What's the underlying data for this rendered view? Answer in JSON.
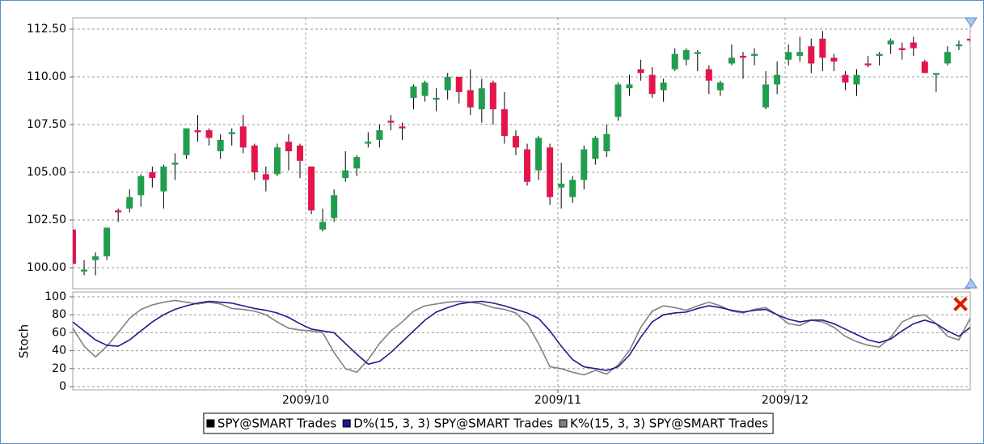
{
  "chart_data": [
    {
      "type": "candlestick",
      "series": [
        {
          "name": "SPY@SMART Trades",
          "color": "#000000",
          "up_color": "#1f9e4d",
          "down_color": "#e4154b",
          "open": [
            102,
            99.8,
            100.4,
            100.6,
            103,
            103.1,
            103.8,
            105,
            104,
            105.4,
            105.9,
            107.2,
            107.2,
            106.1,
            107,
            107.4,
            106.4,
            104.9,
            104.9,
            106.6,
            106.4,
            105.3,
            102,
            102.6,
            104.7,
            105.2,
            106.5,
            106.7,
            107.7,
            107.4,
            108.9,
            109,
            108.8,
            109.3,
            110,
            109.3,
            108.3,
            109.7,
            108.3,
            106.9,
            106.2,
            105.1,
            106.3,
            104.2,
            103.7,
            104.6,
            105.7,
            106.1,
            107.9,
            109.4,
            110.4,
            110.1,
            109.3,
            110.4,
            110.9,
            111.2,
            110.4,
            109.3,
            110.7,
            111.1,
            111.1,
            108.4,
            109.6,
            110.9,
            111.1,
            111.6,
            112,
            111,
            110.1,
            109.6,
            110.7,
            111.1,
            111.7,
            111.5,
            111.8,
            110.8,
            110.1,
            110.7,
            111.6,
            112
          ],
          "high": [
            102,
            100.4,
            100.8,
            102.1,
            103.1,
            104.1,
            104.9,
            105.3,
            105.4,
            106,
            107.3,
            108,
            107.3,
            107,
            107.3,
            108,
            106.5,
            105.3,
            106.5,
            107,
            106.5,
            105.3,
            103.1,
            104.1,
            106.1,
            105.9,
            107.1,
            107.5,
            108,
            107.6,
            109.6,
            109.8,
            109.4,
            110.2,
            110,
            110.4,
            109.9,
            109.8,
            109.2,
            107.2,
            106.5,
            106.9,
            106.5,
            105.5,
            104.8,
            106.4,
            106.9,
            107.5,
            109.7,
            110.1,
            110.9,
            110.5,
            109.9,
            111.5,
            111.5,
            111.4,
            110.6,
            109.8,
            111.7,
            111.3,
            111.5,
            110.3,
            110.8,
            111.7,
            112.1,
            112,
            112.4,
            111.2,
            110.3,
            110.4,
            111.1,
            111.3,
            112,
            111.8,
            112.1,
            110.9,
            110.2,
            111.6,
            111.9,
            112
          ],
          "low": [
            100.2,
            99.6,
            99.6,
            100.4,
            102.4,
            102.9,
            103.2,
            104.2,
            103.1,
            104.6,
            105.7,
            106.6,
            106.4,
            105.7,
            106.4,
            106,
            104.6,
            104,
            104.8,
            105.1,
            104.7,
            102.8,
            101.9,
            102.4,
            104.5,
            104.8,
            106.3,
            106.3,
            107.2,
            106.7,
            108.3,
            108.7,
            108.2,
            108.8,
            108.6,
            108,
            107.6,
            107.5,
            106.5,
            105.9,
            104.3,
            104.6,
            103.3,
            103.1,
            103.4,
            104.1,
            105.4,
            105.8,
            107.7,
            109,
            109.8,
            108.9,
            108.7,
            110.3,
            110.6,
            110.3,
            109.1,
            109,
            110.6,
            109.9,
            110.6,
            108.3,
            109.1,
            110.6,
            110.8,
            110.2,
            110.3,
            110.3,
            109.3,
            109,
            110.5,
            110.6,
            111.2,
            110.9,
            111.1,
            110.2,
            109.2,
            110.6,
            111.4,
            111.8
          ],
          "close": [
            100.2,
            99.9,
            100.6,
            102.1,
            102.9,
            103.7,
            104.8,
            104.7,
            105.3,
            105.5,
            107.3,
            107.1,
            106.8,
            106.7,
            107.1,
            106.3,
            105,
            104.6,
            106.3,
            106.1,
            105.6,
            103,
            102.4,
            103.8,
            105.1,
            105.8,
            106.6,
            107.2,
            107.6,
            107.3,
            109.5,
            109.7,
            108.9,
            110,
            109.2,
            108.4,
            109.4,
            108.3,
            106.9,
            106.3,
            104.5,
            106.8,
            103.7,
            104.4,
            104.6,
            106.2,
            106.8,
            107,
            109.6,
            109.6,
            110.2,
            109.1,
            109.7,
            111.2,
            111.4,
            111.3,
            109.8,
            109.7,
            111,
            111,
            111.2,
            109.6,
            110.1,
            111.3,
            111.3,
            110.7,
            111,
            110.8,
            109.7,
            110.1,
            110.6,
            111.2,
            111.9,
            111.4,
            111.5,
            110.2,
            110.2,
            111.3,
            111.7,
            111.9
          ]
        }
      ],
      "xlim": [
        0,
        79
      ],
      "ylim": [
        99,
        113
      ],
      "yticks": [
        {
          "value": 100,
          "label": "100.00"
        },
        {
          "value": 102.5,
          "label": "102.50"
        },
        {
          "value": 105,
          "label": "105.00"
        },
        {
          "value": 107.5,
          "label": "107.50"
        },
        {
          "value": 110,
          "label": "110.00"
        },
        {
          "value": 112.5,
          "label": "112.50"
        }
      ],
      "grid": true
    },
    {
      "type": "line",
      "ylabel": "Stoch",
      "series": [
        {
          "name": "D%(15, 3, 3) SPY@SMART Trades",
          "color": "#1c1c8c",
          "values": [
            72,
            62,
            52,
            46,
            45,
            52,
            62,
            72,
            80,
            86,
            90,
            93,
            95,
            94,
            93,
            90,
            87,
            85,
            82,
            77,
            70,
            64,
            62,
            60,
            48,
            36,
            25,
            28,
            38,
            50,
            62,
            74,
            83,
            88,
            92,
            94,
            95,
            93,
            90,
            86,
            82,
            76,
            62,
            45,
            30,
            22,
            20,
            18,
            22,
            35,
            55,
            72,
            80,
            82,
            83,
            87,
            90,
            88,
            85,
            83,
            85,
            86,
            80,
            75,
            72,
            74,
            74,
            70,
            64,
            58,
            52,
            49,
            53,
            62,
            70,
            74,
            70,
            62,
            56,
            66
          ]
        },
        {
          "name": "K%(15, 3, 3) SPY@SMART Trades",
          "color": "#808080",
          "values": [
            65,
            45,
            33,
            45,
            60,
            76,
            86,
            91,
            94,
            96,
            94,
            92,
            94,
            92,
            87,
            86,
            84,
            80,
            72,
            65,
            63,
            62,
            60,
            38,
            20,
            16,
            30,
            48,
            62,
            72,
            84,
            90,
            92,
            94,
            95,
            94,
            92,
            88,
            86,
            82,
            70,
            48,
            22,
            20,
            16,
            13,
            18,
            14,
            24,
            40,
            66,
            84,
            90,
            88,
            85,
            90,
            94,
            90,
            84,
            82,
            86,
            88,
            80,
            70,
            68,
            74,
            72,
            66,
            56,
            50,
            46,
            44,
            55,
            72,
            78,
            80,
            70,
            56,
            52,
            76
          ]
        }
      ],
      "xlim": [
        0,
        79
      ],
      "xticks": [
        {
          "value": 20.5,
          "label": "2009/10"
        },
        {
          "value": 42.7,
          "label": "2009/11"
        },
        {
          "value": 62.7,
          "label": "2009/12"
        }
      ],
      "ylim": [
        0,
        100
      ],
      "yticks": [
        0,
        20,
        40,
        60,
        80,
        100
      ],
      "grid": true
    }
  ]
}
